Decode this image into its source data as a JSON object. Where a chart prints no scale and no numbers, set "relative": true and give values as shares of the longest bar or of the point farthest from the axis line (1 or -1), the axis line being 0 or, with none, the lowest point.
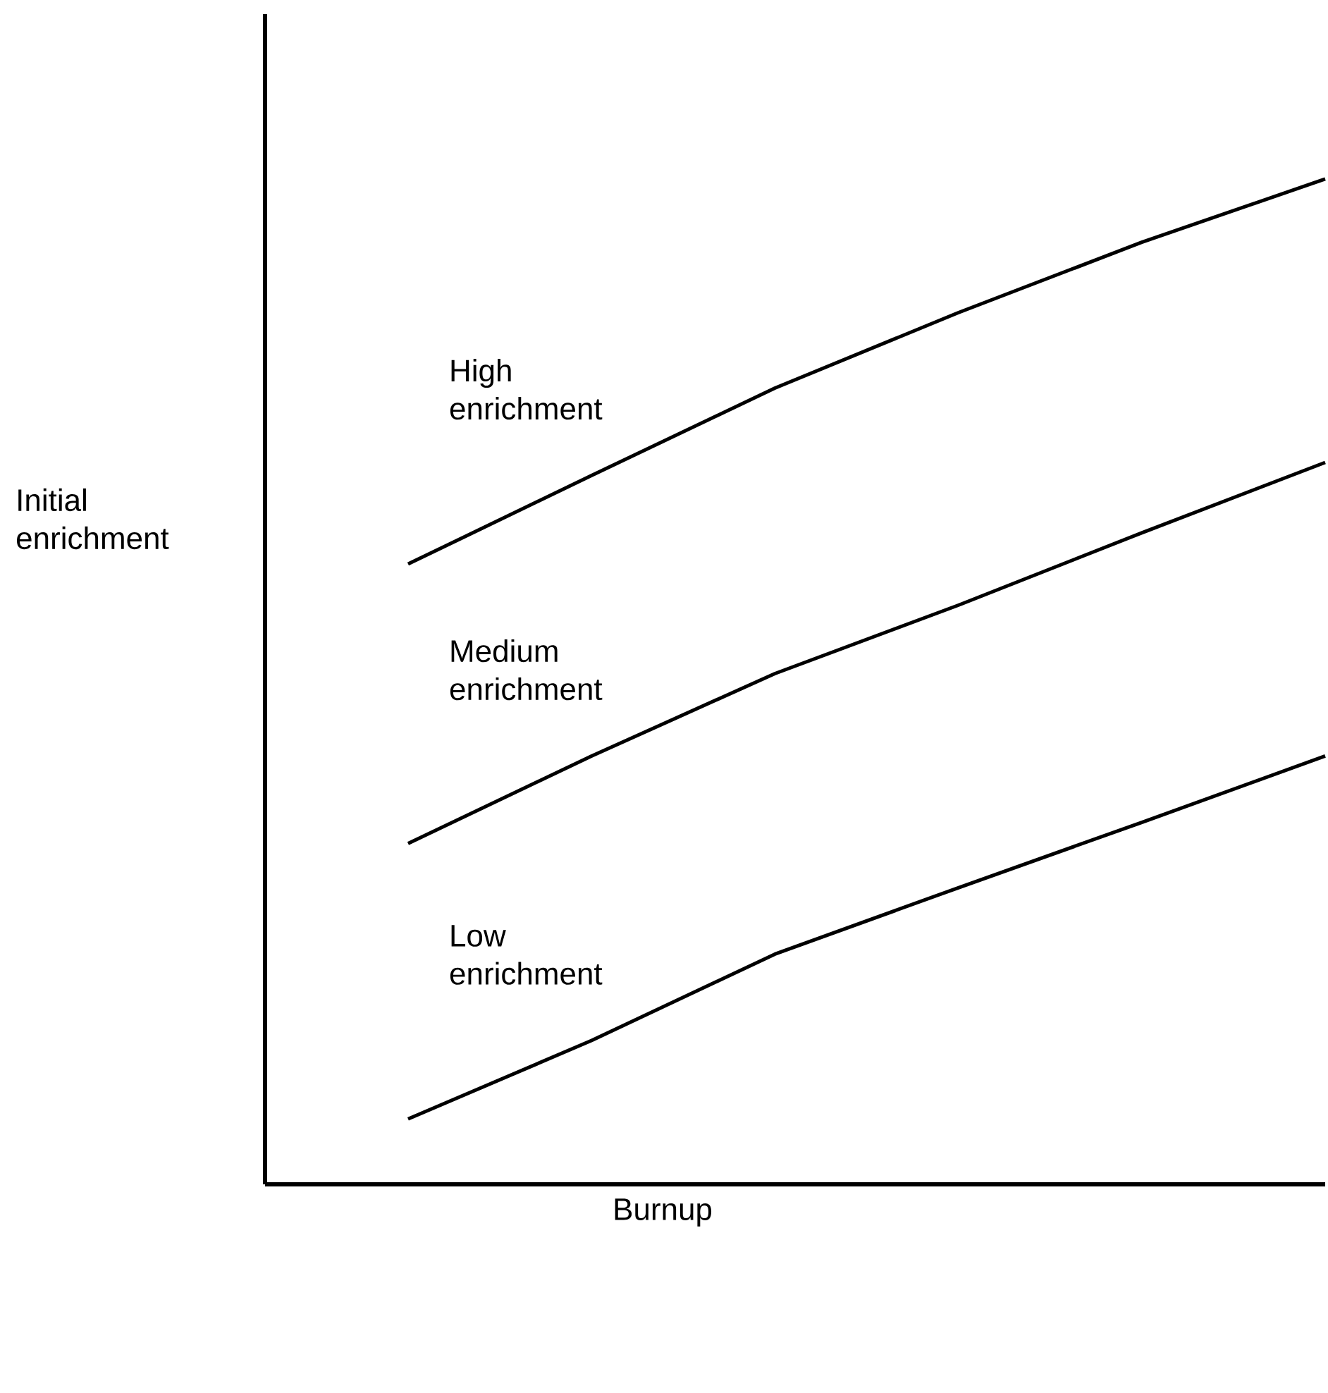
{
  "chart_data": {
    "type": "line",
    "relative": true,
    "xlabel": "Burnup",
    "ylabel": "Initial enrichment",
    "categories": [
      null,
      null,
      null,
      null,
      null,
      null
    ],
    "series": [
      {
        "name": "High enrichment",
        "color": "#000000",
        "values": [
          0.617,
          0.705,
          0.792,
          0.867,
          0.937,
          1
        ]
      },
      {
        "name": "Medium enrichment",
        "color": "#000000",
        "values": [
          0.339,
          0.426,
          0.508,
          0.576,
          0.648,
          0.718
        ]
      },
      {
        "name": "Low enrichment",
        "color": "#000000",
        "values": [
          0.065,
          0.143,
          0.229,
          0.295,
          0.36,
          0.426
        ]
      }
    ]
  }
}
